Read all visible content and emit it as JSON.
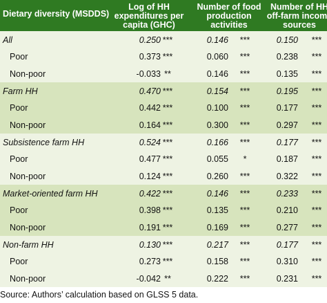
{
  "header": {
    "label": "Dietary diversity (MSDDS)",
    "col1": [
      "Log of HH",
      "expenditures per",
      "capita (GHC)"
    ],
    "col2": [
      "Number of food",
      "production",
      "activities"
    ],
    "col3": [
      "Number of HH",
      "off-farm income",
      "sources"
    ]
  },
  "groups": [
    {
      "rows": [
        {
          "label": "All",
          "v1": "0.250",
          "s1": "***",
          "v2": "0.146",
          "s2": "***",
          "v3": "0.150",
          "s3": "***"
        },
        {
          "label": "Poor",
          "v1": "0.373",
          "s1": "***",
          "v2": "0.060",
          "s2": "***",
          "v3": "0.238",
          "s3": "***"
        },
        {
          "label": "Non-poor",
          "v1": "-0.033",
          "s1": "**",
          "v2": "0.146",
          "s2": "***",
          "v3": "0.135",
          "s3": "***"
        }
      ]
    },
    {
      "rows": [
        {
          "label": "Farm HH",
          "v1": "0.470",
          "s1": "***",
          "v2": "0.154",
          "s2": "***",
          "v3": "0.195",
          "s3": "***"
        },
        {
          "label": "Poor",
          "v1": "0.442",
          "s1": "***",
          "v2": "0.100",
          "s2": "***",
          "v3": "0.177",
          "s3": "***"
        },
        {
          "label": "Non-poor",
          "v1": "0.164",
          "s1": "***",
          "v2": "0.300",
          "s2": "***",
          "v3": "0.297",
          "s3": "***"
        }
      ]
    },
    {
      "rows": [
        {
          "label": "Subsistence farm HH",
          "v1": "0.524",
          "s1": "***",
          "v2": "0.166",
          "s2": "***",
          "v3": "0.177",
          "s3": "***"
        },
        {
          "label": "Poor",
          "v1": "0.477",
          "s1": "***",
          "v2": "0.055",
          "s2": "*",
          "v3": "0.187",
          "s3": "***"
        },
        {
          "label": "Non-poor",
          "v1": "0.124",
          "s1": "***",
          "v2": "0.260",
          "s2": "***",
          "v3": "0.322",
          "s3": "***"
        }
      ]
    },
    {
      "rows": [
        {
          "label": "Market-oriented farm HH",
          "v1": "0.422",
          "s1": "***",
          "v2": "0.146",
          "s2": "***",
          "v3": "0.233",
          "s3": "***"
        },
        {
          "label": "Poor",
          "v1": "0.398",
          "s1": "***",
          "v2": "0.135",
          "s2": "***",
          "v3": "0.210",
          "s3": "***"
        },
        {
          "label": "Non-poor",
          "v1": "0.191",
          "s1": "***",
          "v2": "0.169",
          "s2": "***",
          "v3": "0.277",
          "s3": "***"
        }
      ]
    },
    {
      "rows": [
        {
          "label": "Non-farm HH",
          "v1": "0.130",
          "s1": "***",
          "v2": "0.217",
          "s2": "***",
          "v3": "0.177",
          "s3": "***"
        },
        {
          "label": "Poor",
          "v1": "0.273",
          "s1": "***",
          "v2": "0.158",
          "s2": "***",
          "v3": "0.310",
          "s3": "***"
        },
        {
          "label": "Non-poor",
          "v1": "-0.042",
          "s1": "**",
          "v2": "0.222",
          "s2": "***",
          "v3": "0.231",
          "s3": "***"
        }
      ]
    }
  ],
  "footer": "Source: Authors’ calculation based on GLSS 5 data.",
  "colors": {
    "header_bg": "#2f7a22",
    "band_light": "#eef3e3",
    "band_dark": "#d7e4bd"
  }
}
